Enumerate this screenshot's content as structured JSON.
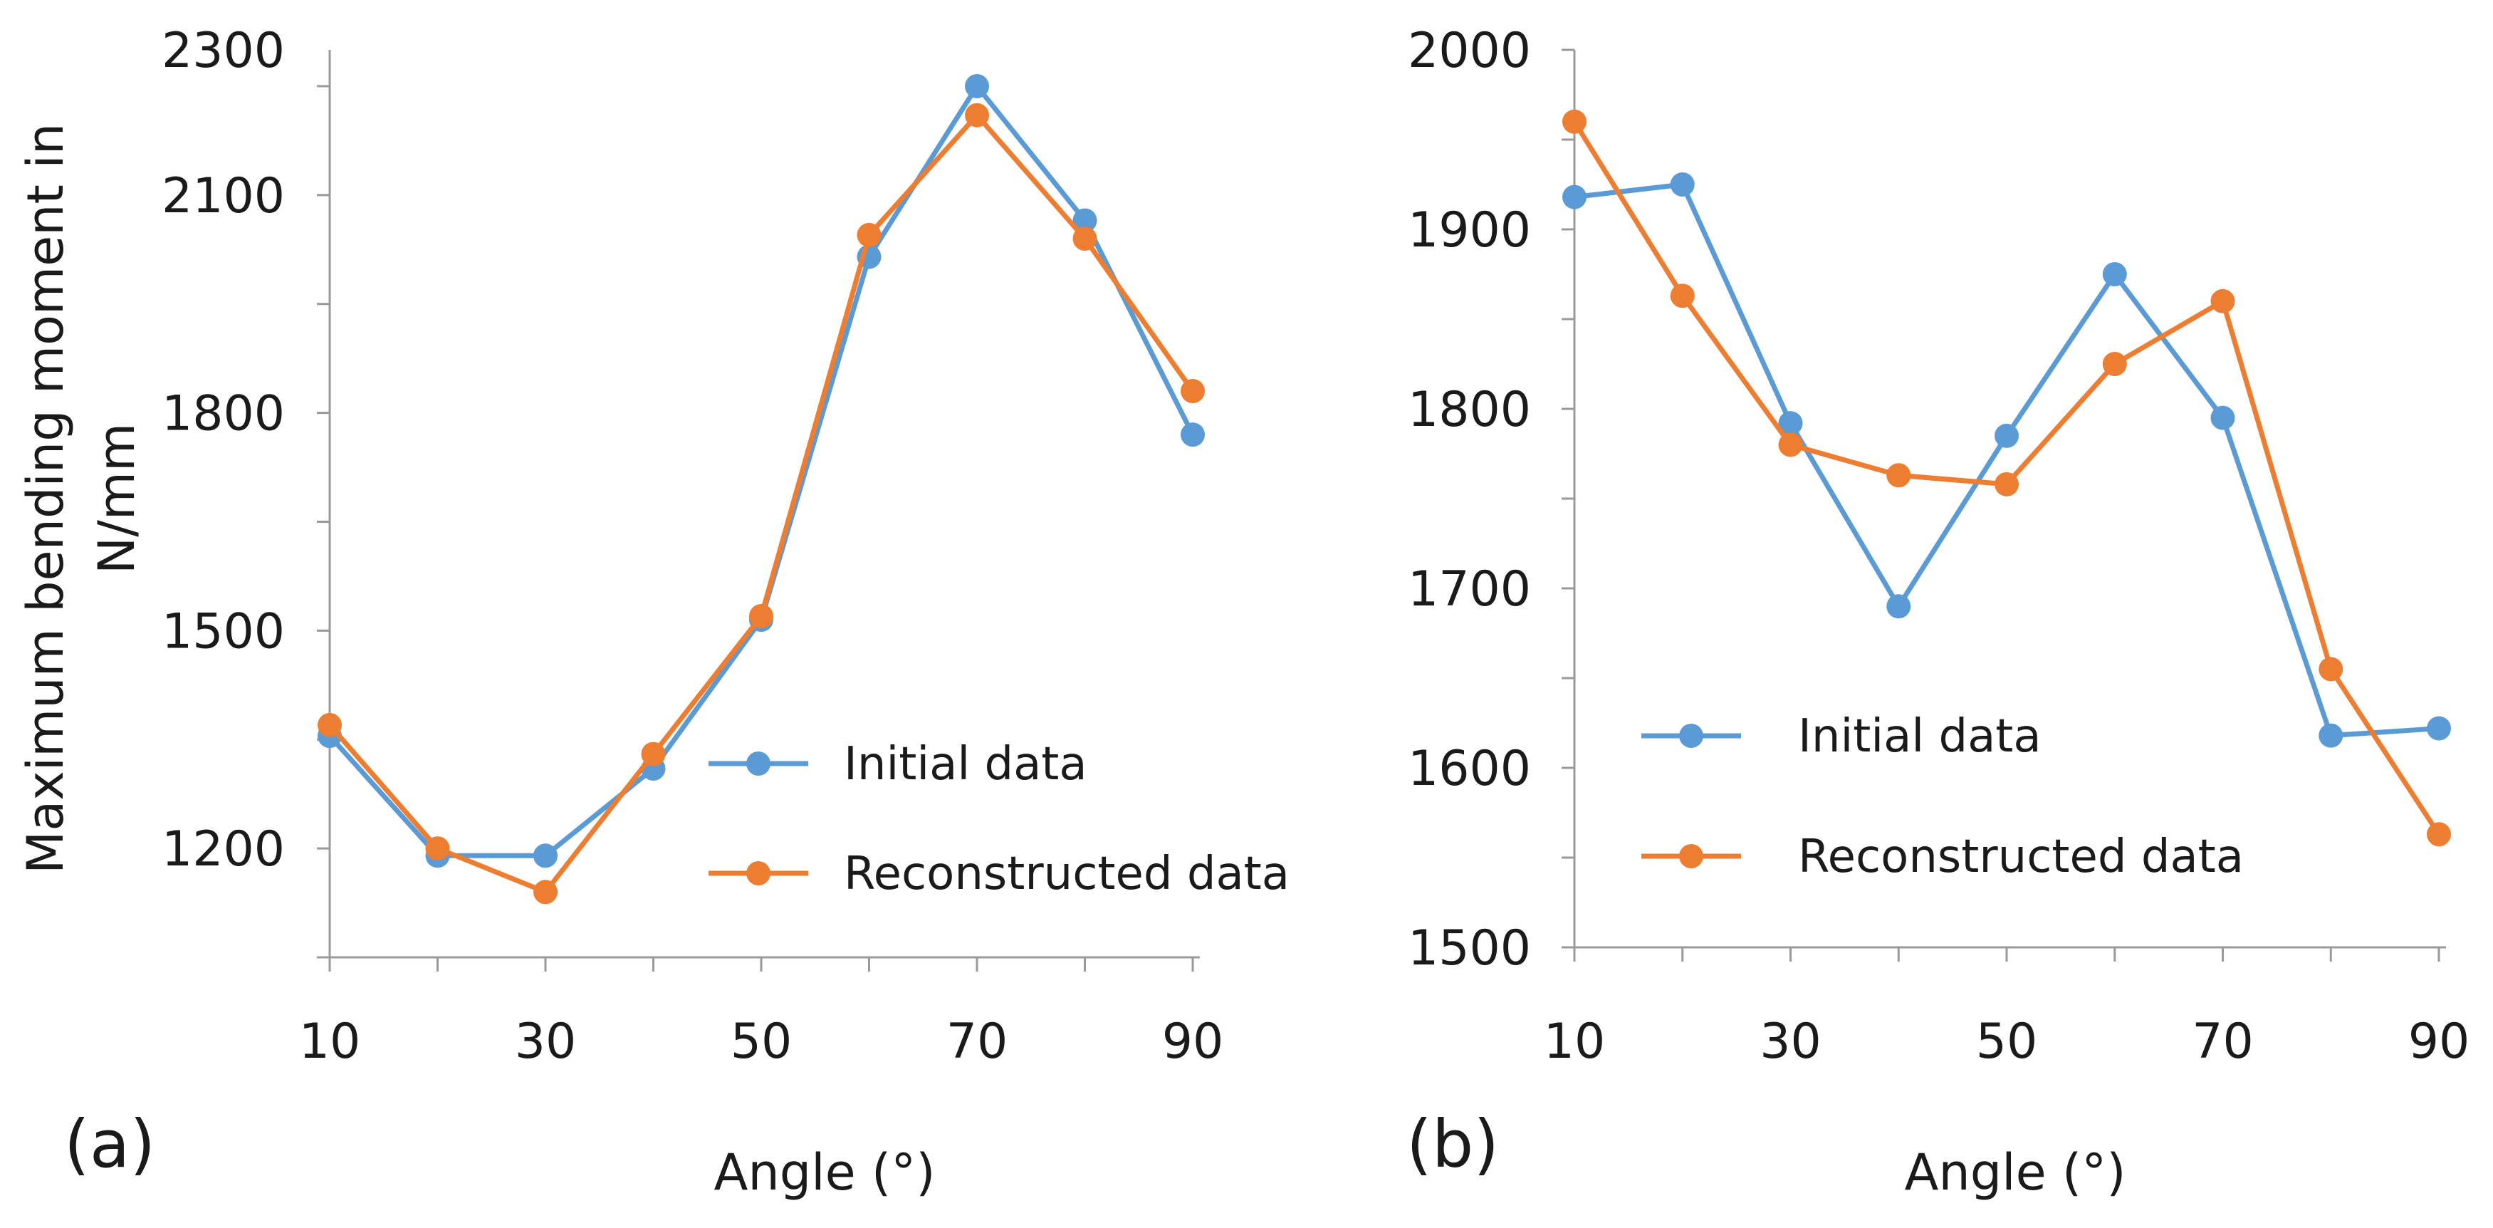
{
  "chart_data": [
    {
      "type": "line",
      "panel_label": "(a)",
      "xlabel": "Angle (°)",
      "ylabel": "Maximum bending moment in N/mm",
      "ylabel_lines": [
        "Maximum bending moment in",
        "N/mm"
      ],
      "x": [
        10,
        20,
        30,
        40,
        50,
        60,
        70,
        80,
        90
      ],
      "x_tick_labels": [
        "10",
        "30",
        "50",
        "70",
        "90"
      ],
      "xlim": [
        10,
        90
      ],
      "ylim": [
        1050,
        2300
      ],
      "y_tick_labels": [
        "1200",
        "1500",
        "1800",
        "2100",
        "2300"
      ],
      "y_tick_values": [
        1200,
        1500,
        1800,
        2100,
        2300
      ],
      "legend_position": "center-right",
      "series": [
        {
          "name": "Initial data",
          "color": "#5b9bd5",
          "values": [
            1355,
            1190,
            1190,
            1310,
            1515,
            2015,
            2250,
            2065,
            1770
          ]
        },
        {
          "name": "Reconstructed data",
          "color": "#ed7d31",
          "values": [
            1370,
            1200,
            1140,
            1330,
            1520,
            2045,
            2210,
            2040,
            1830
          ]
        }
      ]
    },
    {
      "type": "line",
      "panel_label": "(b)",
      "xlabel": "Angle (°)",
      "ylabel": "",
      "x": [
        10,
        20,
        30,
        40,
        50,
        60,
        70,
        80,
        90
      ],
      "x_tick_labels": [
        "10",
        "30",
        "50",
        "70",
        "90"
      ],
      "xlim": [
        10,
        90
      ],
      "ylim": [
        1500,
        2000
      ],
      "y_tick_labels": [
        "1500",
        "1600",
        "1700",
        "1800",
        "1900",
        "2000"
      ],
      "y_tick_values": [
        1500,
        1600,
        1700,
        1800,
        1900,
        2000
      ],
      "legend_position": "bottom-left",
      "series": [
        {
          "name": "Initial data",
          "color": "#5b9bd5",
          "values": [
            1918,
            1925,
            1792,
            1690,
            1785,
            1875,
            1795,
            1618,
            1622
          ]
        },
        {
          "name": "Reconstructed data",
          "color": "#ed7d31",
          "values": [
            1960,
            1863,
            1780,
            1763,
            1758,
            1825,
            1860,
            1655,
            1563
          ]
        }
      ]
    }
  ]
}
